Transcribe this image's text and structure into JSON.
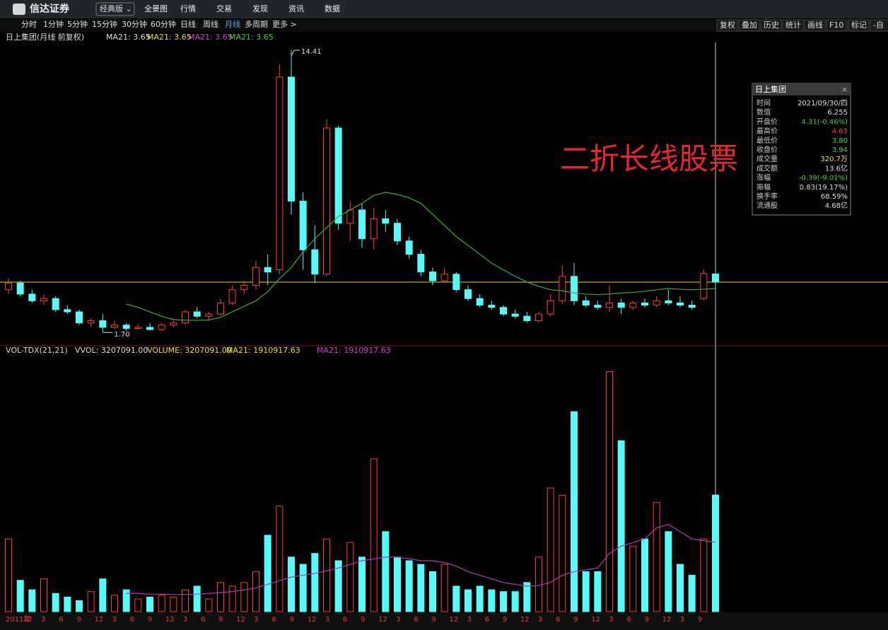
{
  "top_bar": {
    "logo": "信达证券",
    "edition": "经典版 ⌄",
    "menu": [
      "全景图",
      "行情",
      "交易",
      "发现",
      "资讯",
      "数据"
    ]
  },
  "toolbar": {
    "periods": [
      "分时",
      "1分钟",
      "5分钟",
      "15分钟",
      "30分钟",
      "60分钟",
      "日线",
      "周线",
      "月线",
      "多周期",
      "更多 >"
    ],
    "tools": [
      "复权",
      "叠加",
      "历史",
      "统计",
      "画线",
      "F10",
      "标记",
      "-自"
    ]
  },
  "price_header": {
    "title": "日上集团(月线 前复权)",
    "ma_labels": [
      "MA21: 3.65",
      "MA21: 3.65",
      "MA21: 3.65",
      "MA21: 3.65"
    ]
  },
  "extreme_labels": {
    "high": "14.41",
    "low": "1.70"
  },
  "watermark": "二折长线股票",
  "volume_header": {
    "indicator": "VOL-TDX(21,21)",
    "items": [
      "VVOL: 3207091.00",
      "VOLUME: 3207091.00",
      "MA21: 1910917.63",
      "MA21: 1910917.63"
    ]
  },
  "info_panel": {
    "title": "日上集团",
    "rows": [
      [
        "时间",
        "2021/09/30/四"
      ],
      [
        "数值",
        "6.255"
      ],
      [
        "开盘价",
        "4.31(-0.46%)"
      ],
      [
        "最高价",
        "4.63"
      ],
      [
        "最低价",
        "3.80"
      ],
      [
        "收盘价",
        "3.94"
      ],
      [
        "成交量",
        "320.7万"
      ],
      [
        "成交额",
        "13.6亿"
      ],
      [
        "涨幅",
        "-0.39(-9.01%)"
      ],
      [
        "振幅",
        "0.83(19.17%)"
      ],
      [
        "换手率",
        "68.59%"
      ],
      [
        "流通股",
        "4.68亿"
      ]
    ]
  },
  "x_axis_labels": [
    "2011年",
    "12",
    "3",
    "6",
    "9",
    "12",
    "3",
    "6",
    "9",
    "12",
    "3",
    "6",
    "9",
    "12",
    "3",
    "6",
    "9",
    "12",
    "3",
    "6",
    "9",
    "12",
    "3",
    "6",
    "9",
    "12",
    "3",
    "6",
    "9",
    "12",
    "3",
    "6",
    "9",
    "12",
    "3",
    "6",
    "9",
    "12",
    "3",
    "9"
  ],
  "chart_data": [
    {
      "type": "candlestick",
      "ylim": [
        1.1,
        14.7
      ],
      "open": [
        3.6,
        3.9,
        3.4,
        3.1,
        3.2,
        2.7,
        2.6,
        2.1,
        2.2,
        1.9,
        2.0,
        1.85,
        1.9,
        1.8,
        2.0,
        2.1,
        2.6,
        2.4,
        2.5,
        3.0,
        3.6,
        3.8,
        4.6,
        4.5,
        13.2,
        7.6,
        5.4,
        4.3,
        10.9,
        6.6,
        7.2,
        5.9,
        6.8,
        6.6,
        5.8,
        5.2,
        4.4,
        4.0,
        4.3,
        3.6,
        3.2,
        2.9,
        2.8,
        2.5,
        2.4,
        2.2,
        2.5,
        3.1,
        4.2,
        3.1,
        2.9,
        2.8,
        3.0,
        2.8,
        3.0,
        2.9,
        3.1,
        3.0,
        2.9,
        3.2,
        4.31
      ],
      "high": [
        4.1,
        4.0,
        3.6,
        3.4,
        3.3,
        2.9,
        2.7,
        2.3,
        2.5,
        2.2,
        2.1,
        2.0,
        2.1,
        2.1,
        2.3,
        2.7,
        2.8,
        2.6,
        3.2,
        3.8,
        4.0,
        4.9,
        5.2,
        13.8,
        14.41,
        8.0,
        6.5,
        11.3,
        11.0,
        7.6,
        7.5,
        7.3,
        7.2,
        6.8,
        6.0,
        5.4,
        4.6,
        4.6,
        4.4,
        3.8,
        3.4,
        3.1,
        2.9,
        2.7,
        2.6,
        2.6,
        3.4,
        4.7,
        4.8,
        3.3,
        3.1,
        3.8,
        3.2,
        3.1,
        3.2,
        3.3,
        3.6,
        3.3,
        3.1,
        4.5,
        4.63
      ],
      "low": [
        3.4,
        3.3,
        3.0,
        2.9,
        2.6,
        2.5,
        2.0,
        1.9,
        1.7,
        1.8,
        1.75,
        1.8,
        1.75,
        1.75,
        1.9,
        2.0,
        2.3,
        2.2,
        2.4,
        2.9,
        3.4,
        3.6,
        3.8,
        4.3,
        7.0,
        4.5,
        3.9,
        4.2,
        6.3,
        5.8,
        5.5,
        5.4,
        6.2,
        5.6,
        5.0,
        4.2,
        3.8,
        3.9,
        3.5,
        3.1,
        2.8,
        2.7,
        2.4,
        2.3,
        2.1,
        2.1,
        2.4,
        3.0,
        2.9,
        2.8,
        2.7,
        2.6,
        2.5,
        2.7,
        2.8,
        2.8,
        2.9,
        2.8,
        2.7,
        3.1,
        3.8
      ],
      "close": [
        3.9,
        3.4,
        3.1,
        3.2,
        2.7,
        2.6,
        2.1,
        2.2,
        1.9,
        2.0,
        1.85,
        1.9,
        1.8,
        2.0,
        2.1,
        2.6,
        2.4,
        2.5,
        3.0,
        3.6,
        3.8,
        4.6,
        4.4,
        13.2,
        7.6,
        5.4,
        4.3,
        10.9,
        6.6,
        7.2,
        5.9,
        6.8,
        6.6,
        5.8,
        5.2,
        4.4,
        4.0,
        4.3,
        3.6,
        3.2,
        2.9,
        2.8,
        2.5,
        2.4,
        2.2,
        2.5,
        3.1,
        4.2,
        3.1,
        2.9,
        2.8,
        3.0,
        2.8,
        3.0,
        2.9,
        3.1,
        3.0,
        2.9,
        2.8,
        4.33,
        3.94
      ],
      "ma": {
        "name": "MA21",
        "color": "#3fa83f",
        "values": [
          null,
          null,
          null,
          null,
          null,
          null,
          null,
          null,
          null,
          null,
          2.95,
          2.8,
          2.6,
          2.4,
          2.25,
          2.22,
          2.22,
          2.23,
          2.35,
          2.6,
          2.85,
          3.1,
          3.5,
          4.1,
          4.6,
          5.3,
          5.9,
          6.4,
          6.9,
          7.2,
          7.5,
          7.85,
          8.0,
          7.9,
          7.75,
          7.5,
          7.0,
          6.5,
          6.0,
          5.6,
          5.2,
          4.8,
          4.5,
          4.2,
          3.95,
          3.75,
          3.6,
          3.55,
          3.45,
          3.4,
          3.38,
          3.4,
          3.45,
          3.48,
          3.52,
          3.6,
          3.65,
          3.62,
          3.6,
          3.62,
          3.65
        ]
      },
      "up_color": "#ff3b3b",
      "down_color": "#54fcfc"
    },
    {
      "type": "bar",
      "ylim": [
        0,
        7000000
      ],
      "values": [
        2000000,
        860000,
        600000,
        900000,
        500000,
        400000,
        300000,
        550000,
        900000,
        450000,
        600000,
        350000,
        400000,
        450000,
        400000,
        600000,
        700000,
        350000,
        800000,
        700000,
        800000,
        1100000,
        2100000,
        2900000,
        1500000,
        1300000,
        1600000,
        2000000,
        1400000,
        1900000,
        1500000,
        4200000,
        2200000,
        1500000,
        1400000,
        1300000,
        1100000,
        1300000,
        700000,
        600000,
        700000,
        600000,
        550000,
        550000,
        800000,
        1500000,
        3400000,
        3200000,
        5500000,
        1100000,
        1100000,
        6600000,
        4700000,
        1800000,
        2000000,
        3000000,
        2200000,
        1300000,
        1000000,
        2000000,
        3207091
      ],
      "ma": {
        "name": "MA21",
        "color": "#b03cb0",
        "values": [
          null,
          null,
          null,
          null,
          null,
          null,
          null,
          null,
          null,
          null,
          500000,
          500000,
          480000,
          480000,
          470000,
          470000,
          480000,
          500000,
          520000,
          550000,
          600000,
          650000,
          750000,
          850000,
          950000,
          1000000,
          1050000,
          1120000,
          1200000,
          1300000,
          1400000,
          1450000,
          1500000,
          1500000,
          1450000,
          1400000,
          1400000,
          1350000,
          1250000,
          1100000,
          1000000,
          900000,
          800000,
          750000,
          700000,
          720000,
          800000,
          1000000,
          1100000,
          1150000,
          1200000,
          1600000,
          1800000,
          1900000,
          2000000,
          2300000,
          2400000,
          2200000,
          2000000,
          1950000,
          1910917.63
        ]
      }
    }
  ]
}
